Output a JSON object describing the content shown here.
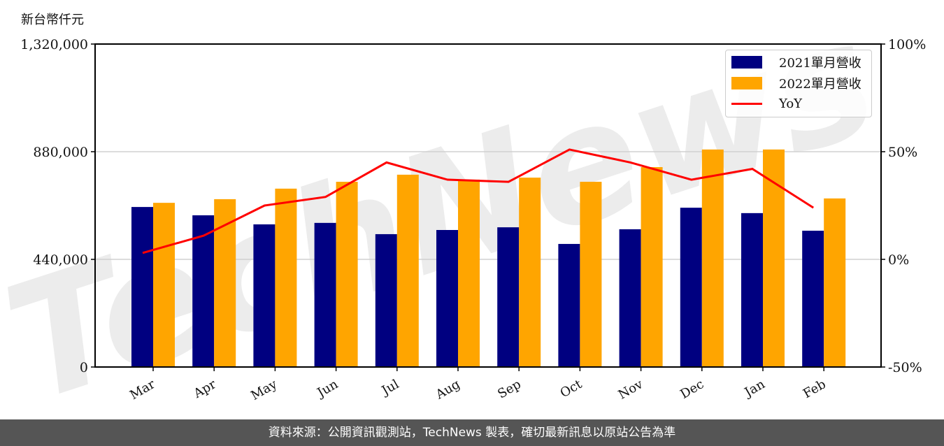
{
  "chart_data": {
    "type": "bar",
    "title": "",
    "ylabel": "新台幣仟元",
    "xlabel": "",
    "categories": [
      "Mar",
      "Apr",
      "May",
      "Jun",
      "Jul",
      "Aug",
      "Sep",
      "Oct",
      "Nov",
      "Dec",
      "Jan",
      "Feb"
    ],
    "series": [
      {
        "name": "2021單月營收",
        "type": "bar",
        "axis": "left",
        "color": "#000080",
        "values": [
          654000,
          620000,
          583000,
          589000,
          543000,
          560000,
          571000,
          503000,
          563000,
          651000,
          629000,
          557000
        ]
      },
      {
        "name": "2022單月營收",
        "type": "bar",
        "axis": "left",
        "color": "#FFA500",
        "values": [
          671000,
          686000,
          729000,
          757000,
          786000,
          766000,
          774000,
          757000,
          817000,
          889000,
          889000,
          689000
        ]
      },
      {
        "name": "YoY",
        "type": "line",
        "axis": "right",
        "color": "#FF0000",
        "values": [
          3,
          11,
          25,
          29,
          45,
          37,
          36,
          51,
          45,
          37,
          42,
          24
        ]
      }
    ],
    "ylim": [
      0,
      1320000
    ],
    "yticks": [
      0,
      440000,
      880000,
      1320000
    ],
    "ytick_labels": [
      "0",
      "440,000",
      "880,000",
      "1,320,000"
    ],
    "y2lim": [
      -50,
      100
    ],
    "y2ticks": [
      -50,
      0,
      50,
      100
    ],
    "y2tick_labels": [
      "-50%",
      "0%",
      "50%",
      "100%"
    ],
    "grid": "horizontal",
    "legend_position": "upper right"
  },
  "unit_label": "新台幣仟元",
  "legend": {
    "items": [
      {
        "label": "2021單月營收",
        "color": "#000080",
        "kind": "bar"
      },
      {
        "label": "2022單月營收",
        "color": "#FFA500",
        "kind": "bar"
      },
      {
        "label": "YoY",
        "color": "#FF0000",
        "kind": "line"
      }
    ]
  },
  "watermark": "TechNews",
  "footer": "資料來源：公開資訊觀測站，TechNews 製表，確切最新訊息以原站公告為準"
}
